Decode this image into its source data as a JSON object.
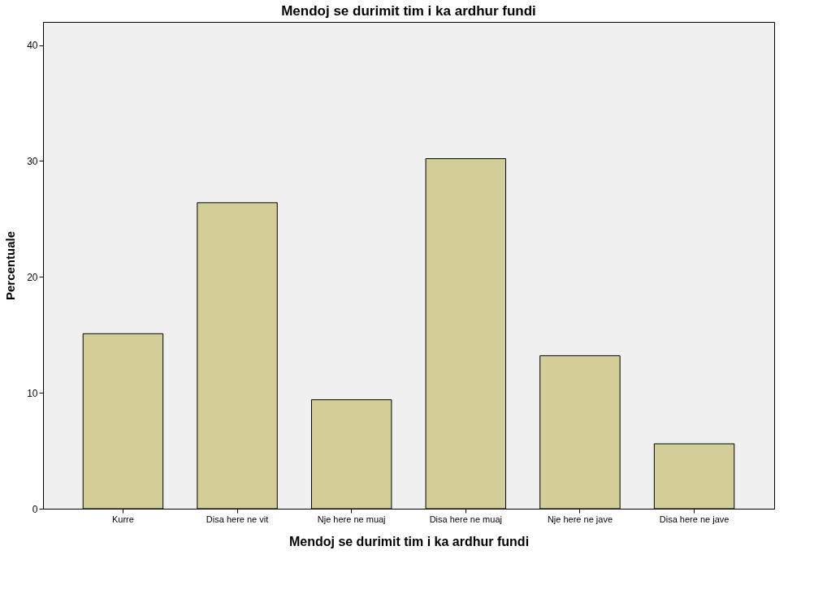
{
  "chart_data": {
    "type": "bar",
    "title": "Mendoj se durimit tim i ka ardhur fundi",
    "xlabel": "Mendoj se durimit tim i ka ardhur fundi",
    "ylabel": "Percentuale",
    "categories": [
      "Kurre",
      "Disa here ne vit",
      "Nje here ne muaj",
      "Disa here ne muaj",
      "Nje here ne jave",
      "Disa here ne jave"
    ],
    "values": [
      15.1,
      26.4,
      9.4,
      30.2,
      13.2,
      5.6
    ],
    "color": "#d3ce97",
    "ylim": [
      0,
      42
    ],
    "yticks": [
      0,
      10,
      20,
      30,
      40
    ],
    "grid": false
  }
}
